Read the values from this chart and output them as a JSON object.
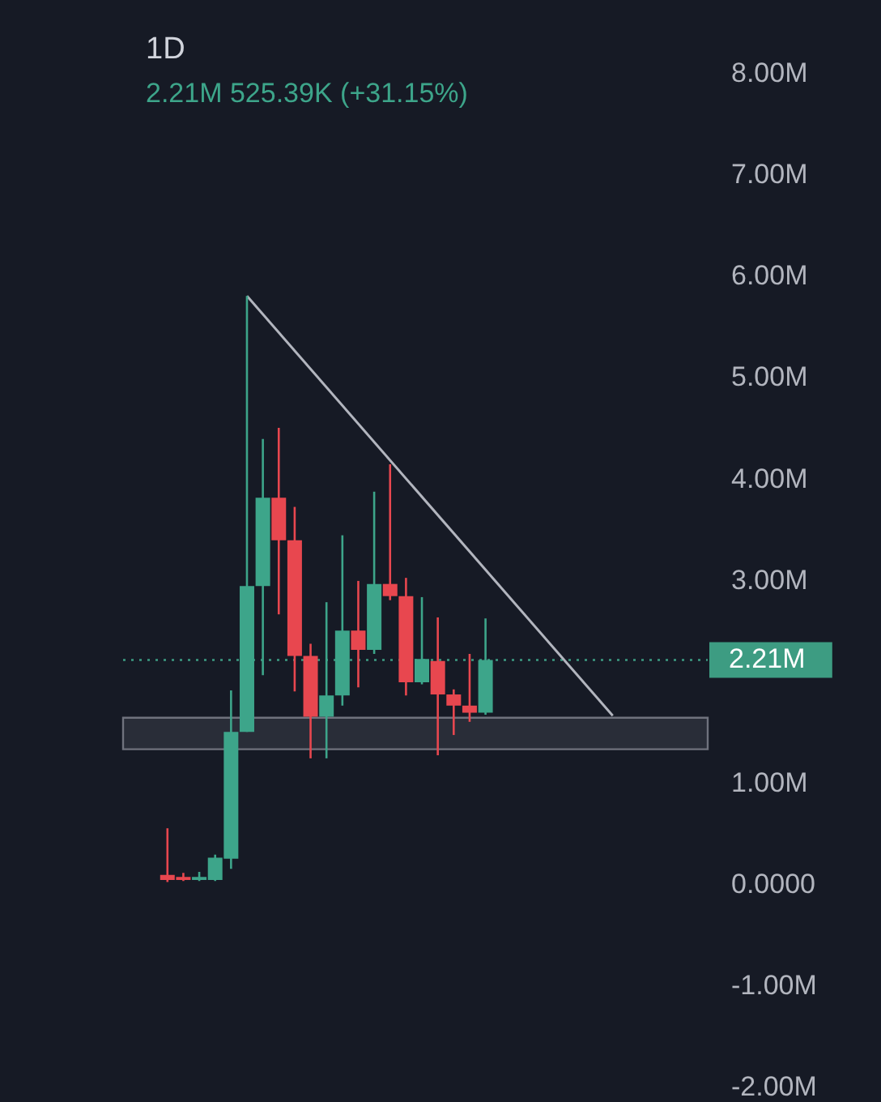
{
  "chart_data": {
    "type": "candlestick",
    "title": "1D",
    "subtitle": "2.21M 525.39K (+31.15%)",
    "categories": [
      null,
      null,
      null,
      null,
      null,
      null,
      null,
      null,
      null,
      null,
      null,
      null,
      null,
      null,
      null,
      null,
      null,
      null,
      null,
      null,
      null,
      null,
      null,
      null,
      null,
      null,
      null,
      null,
      null,
      null,
      null,
      null,
      null,
      null
    ],
    "ohlc": [
      [
        0.09,
        0.55,
        0.02,
        0.04
      ],
      [
        0.07,
        0.11,
        0.03,
        0.04
      ],
      [
        0.04,
        0.12,
        0.03,
        0.07
      ],
      [
        0.04,
        0.29,
        0.03,
        0.26
      ],
      [
        0.25,
        1.91,
        0.15,
        1.5
      ],
      [
        1.5,
        5.8,
        1.5,
        2.94
      ],
      [
        2.94,
        4.39,
        2.06,
        3.81
      ],
      [
        3.81,
        4.5,
        2.66,
        3.39
      ],
      [
        3.39,
        3.72,
        1.9,
        2.25
      ],
      [
        2.25,
        2.37,
        1.24,
        1.65
      ],
      [
        1.65,
        2.78,
        1.24,
        1.86
      ],
      [
        1.86,
        3.44,
        1.76,
        2.5
      ],
      [
        2.5,
        2.99,
        1.94,
        2.31
      ],
      [
        2.31,
        3.87,
        2.27,
        2.96
      ],
      [
        2.96,
        4.14,
        2.8,
        2.84
      ],
      [
        2.84,
        3.02,
        1.86,
        1.99
      ],
      [
        1.99,
        2.83,
        1.97,
        2.22
      ],
      [
        2.2,
        2.63,
        1.27,
        1.87
      ],
      [
        1.87,
        1.92,
        1.47,
        1.76
      ],
      [
        1.76,
        2.27,
        1.6,
        1.69
      ],
      [
        1.69,
        2.62,
        1.67,
        2.21
      ],
      null,
      null,
      null,
      null,
      null,
      null,
      null,
      null,
      null,
      null,
      null,
      null,
      null
    ],
    "colors": [
      "#e8474f",
      "#e8474f",
      "#3da58a",
      "#3da58a",
      "#3da58a",
      "#3da58a",
      "#3da58a",
      "#e8474f",
      "#e8474f",
      "#e8474f",
      "#3da58a",
      "#3da58a",
      "#e8474f",
      "#3da58a",
      "#e8474f",
      "#e8474f",
      "#3da58a",
      "#e8474f",
      "#e8474f",
      "#e8474f",
      "#3da58a",
      null,
      null,
      null,
      null,
      null,
      null,
      null,
      null,
      null,
      null,
      null,
      null,
      null
    ],
    "series": [
      {
        "type": "line",
        "color": "#b2b5be",
        "values": [
          null,
          null,
          null,
          null,
          null,
          5.8,
          null,
          null,
          null,
          null,
          null,
          null,
          null,
          null,
          null,
          null,
          null,
          null,
          null,
          null,
          null,
          null,
          null,
          null,
          null,
          null,
          null,
          null,
          1.66,
          null,
          null,
          null,
          null,
          null
        ]
      }
    ],
    "ylim": [
      -2.15,
      8.72
    ],
    "yticks": [
      {
        "value": 8,
        "label": "8.00M"
      },
      {
        "value": 7,
        "label": "7.00M"
      },
      {
        "value": 6,
        "label": "6.00M"
      },
      {
        "value": 5,
        "label": "5.00M"
      },
      {
        "value": 4,
        "label": "4.00M"
      },
      {
        "value": 3,
        "label": "3.00M"
      },
      {
        "value": 1,
        "label": "1.00M"
      },
      {
        "value": 0,
        "label": "0.0000"
      },
      {
        "value": -1,
        "label": "-1.00M"
      },
      {
        "value": -2,
        "label": "-2.00M"
      }
    ],
    "ref_lines": [
      {
        "axis": "y",
        "value": 2.21,
        "label": "2.21M",
        "color": "#3d9c82",
        "line_style": "dotted"
      }
    ],
    "bands": [
      {
        "axis": "y",
        "from": 1.33,
        "to": 1.64,
        "color": "#787b86"
      }
    ],
    "tick_labels": "y"
  }
}
